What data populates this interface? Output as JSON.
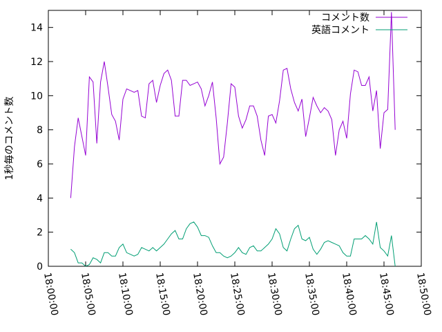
{
  "chart_data": {
    "type": "line",
    "title": "",
    "xlabel": "",
    "ylabel": "1秒毎のコメント数",
    "x_unit": "minutes since 18:00:00",
    "xlim": [
      0,
      50
    ],
    "ylim": [
      0,
      15
    ],
    "x_ticks": [
      "18:00:00",
      "18:05:00",
      "18:10:00",
      "18:15:00",
      "18:20:00",
      "18:25:00",
      "18:30:00",
      "18:35:00",
      "18:40:00",
      "18:45:00",
      "18:50:00"
    ],
    "y_ticks": [
      0,
      2,
      4,
      6,
      8,
      10,
      12,
      14
    ],
    "grid": false,
    "legend_position": "top-right",
    "series": [
      {
        "name": "コメント数",
        "color": "#9400d3",
        "x": [
          3.0,
          3.5,
          4.0,
          4.5,
          5.0,
          5.5,
          6.0,
          6.5,
          7.0,
          7.5,
          8.0,
          8.5,
          9.0,
          9.5,
          10.0,
          10.5,
          11.0,
          11.5,
          12.0,
          12.5,
          13.0,
          13.5,
          14.0,
          14.5,
          15.0,
          15.5,
          16.0,
          16.5,
          17.0,
          17.5,
          18.0,
          18.5,
          19.0,
          19.5,
          20.0,
          20.5,
          21.0,
          21.5,
          22.0,
          22.5,
          23.0,
          23.5,
          24.0,
          24.5,
          25.0,
          25.5,
          26.0,
          26.5,
          27.0,
          27.5,
          28.0,
          28.5,
          29.0,
          29.5,
          30.0,
          30.5,
          31.0,
          31.5,
          32.0,
          32.5,
          33.0,
          33.5,
          34.0,
          34.5,
          35.0,
          35.5,
          36.0,
          36.5,
          37.0,
          37.5,
          38.0,
          38.5,
          39.0,
          39.5,
          40.0,
          40.5,
          41.0,
          41.5,
          42.0,
          42.5,
          43.0,
          43.5,
          44.0,
          44.5,
          45.0,
          45.5,
          46.0,
          46.5
        ],
        "values": [
          4.0,
          7.0,
          8.7,
          7.6,
          6.5,
          11.1,
          10.8,
          7.2,
          10.8,
          12.0,
          10.5,
          8.9,
          8.5,
          7.4,
          9.8,
          10.4,
          10.3,
          10.2,
          10.3,
          8.8,
          8.7,
          10.7,
          10.9,
          9.6,
          10.6,
          11.3,
          11.5,
          10.9,
          8.8,
          8.8,
          10.9,
          10.9,
          10.6,
          10.7,
          10.8,
          10.4,
          9.4,
          10.0,
          10.8,
          8.7,
          6.0,
          6.4,
          8.4,
          10.7,
          10.5,
          8.8,
          8.1,
          8.6,
          9.4,
          9.4,
          8.8,
          7.4,
          6.5,
          8.8,
          8.9,
          8.4,
          9.7,
          11.5,
          11.6,
          10.4,
          9.6,
          9.1,
          9.8,
          7.6,
          8.7,
          9.9,
          9.4,
          9.0,
          9.3,
          9.1,
          8.6,
          6.5,
          8.0,
          8.5,
          7.5,
          10.1,
          11.5,
          11.4,
          10.6,
          10.6,
          11.1,
          9.1,
          10.3,
          6.9,
          9.0,
          9.2,
          14.9,
          8.0
        ]
      },
      {
        "name": "英語コメント",
        "color": "#009e73",
        "x": [
          3.0,
          3.5,
          4.0,
          4.5,
          5.0,
          5.5,
          6.0,
          6.5,
          7.0,
          7.5,
          8.0,
          8.5,
          9.0,
          9.5,
          10.0,
          10.5,
          11.0,
          11.5,
          12.0,
          12.5,
          13.0,
          13.5,
          14.0,
          14.5,
          15.0,
          15.5,
          16.0,
          16.5,
          17.0,
          17.5,
          18.0,
          18.5,
          19.0,
          19.5,
          20.0,
          20.5,
          21.0,
          21.5,
          22.0,
          22.5,
          23.0,
          23.5,
          24.0,
          24.5,
          25.0,
          25.5,
          26.0,
          26.5,
          27.0,
          27.5,
          28.0,
          28.5,
          29.0,
          29.5,
          30.0,
          30.5,
          31.0,
          31.5,
          32.0,
          32.5,
          33.0,
          33.5,
          34.0,
          34.5,
          35.0,
          35.5,
          36.0,
          36.5,
          37.0,
          37.5,
          38.0,
          38.5,
          39.0,
          39.5,
          40.0,
          40.5,
          41.0,
          41.5,
          42.0,
          42.5,
          43.0,
          43.5,
          44.0,
          44.5,
          45.0,
          45.5,
          46.0,
          46.5
        ],
        "values": [
          1.0,
          0.8,
          0.2,
          0.2,
          0.0,
          0.1,
          0.5,
          0.4,
          0.2,
          0.8,
          0.8,
          0.6,
          0.6,
          1.1,
          1.3,
          0.8,
          0.7,
          0.6,
          0.7,
          1.1,
          1.0,
          0.9,
          1.1,
          0.9,
          1.1,
          1.3,
          1.6,
          1.9,
          2.1,
          1.6,
          1.6,
          2.2,
          2.5,
          2.6,
          2.3,
          1.8,
          1.8,
          1.7,
          1.2,
          0.8,
          0.8,
          0.6,
          0.5,
          0.6,
          0.8,
          1.1,
          0.8,
          0.7,
          1.1,
          1.2,
          0.9,
          0.9,
          1.1,
          1.3,
          1.6,
          2.2,
          1.9,
          1.1,
          0.9,
          1.6,
          2.2,
          2.4,
          1.6,
          1.5,
          1.7,
          1.0,
          0.7,
          1.0,
          1.4,
          1.5,
          1.4,
          1.3,
          1.2,
          0.8,
          0.6,
          0.6,
          1.6,
          1.6,
          1.6,
          1.8,
          1.6,
          1.3,
          2.6,
          1.1,
          0.9,
          0.6,
          1.8,
          0.0
        ]
      }
    ]
  }
}
